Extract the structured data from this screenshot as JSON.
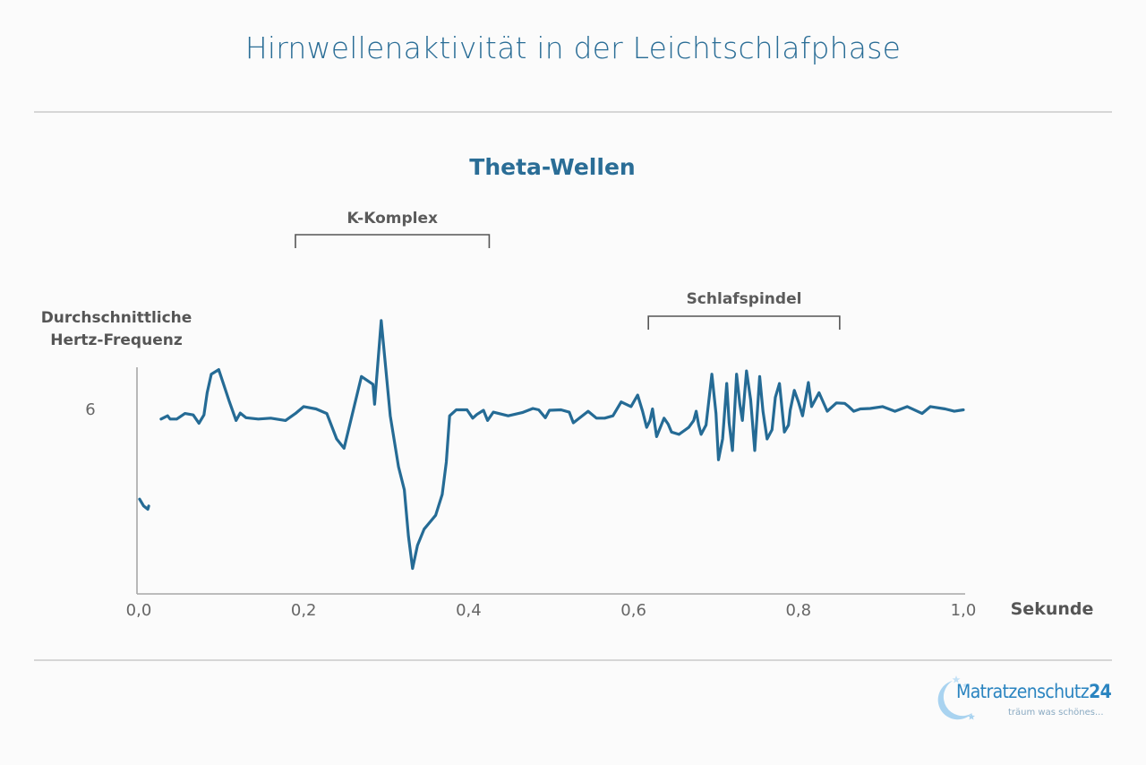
{
  "page_title": "Hirnwellenaktivität in der Leichtschlafphase",
  "logo": {
    "name_main": "Matratzenschutz",
    "name_num": "24",
    "tagline": "träum was schönes..."
  },
  "colors": {
    "accent": "#2a6d96",
    "line": "#256b95",
    "logo": "#2a84c0",
    "text_gray": "#5b5b5b"
  },
  "chart_data": {
    "type": "line",
    "title": "Theta-Wellen",
    "ylabel_lines": [
      "Durchschnittliche",
      "Hertz-Frequenz"
    ],
    "xlabel": "Sekunde",
    "xlim": [
      0.0,
      1.0
    ],
    "ylim": [
      2.15,
      7.05
    ],
    "x_ticks": [
      "0,0",
      "0,2",
      "0,4",
      "0,6",
      "0,8",
      "1,0"
    ],
    "y_ticks": [
      "6"
    ],
    "grid": false,
    "annotations": [
      {
        "label": "K-Komplex",
        "x_start": 0.19,
        "x_end": 0.425
      },
      {
        "label": "Schlafspindel",
        "x_start": 0.618,
        "x_end": 0.85
      }
    ],
    "series": [
      {
        "segments": [
          [
            [
              0.001,
              4.2
            ],
            [
              0.006,
              4.05
            ],
            [
              0.011,
              3.98
            ],
            [
              0.012,
              4.05
            ]
          ],
          [
            [
              0.027,
              5.93
            ],
            [
              0.035,
              6.0
            ],
            [
              0.038,
              5.93
            ],
            [
              0.046,
              5.93
            ],
            [
              0.056,
              6.05
            ],
            [
              0.066,
              6.02
            ],
            [
              0.073,
              5.84
            ],
            [
              0.079,
              6.02
            ],
            [
              0.083,
              6.5
            ],
            [
              0.088,
              6.9
            ],
            [
              0.097,
              7.0
            ],
            [
              0.11,
              6.3
            ],
            [
              0.118,
              5.9
            ],
            [
              0.123,
              6.06
            ],
            [
              0.13,
              5.96
            ],
            [
              0.145,
              5.93
            ],
            [
              0.16,
              5.95
            ],
            [
              0.178,
              5.9
            ],
            [
              0.19,
              6.05
            ],
            [
              0.2,
              6.2
            ],
            [
              0.215,
              6.15
            ],
            [
              0.228,
              6.05
            ],
            [
              0.24,
              5.5
            ],
            [
              0.249,
              5.3
            ],
            [
              0.27,
              6.85
            ],
            [
              0.284,
              6.68
            ],
            [
              0.286,
              6.25
            ],
            [
              0.294,
              8.06
            ],
            [
              0.305,
              6.0
            ],
            [
              0.315,
              4.9
            ],
            [
              0.322,
              4.4
            ],
            [
              0.327,
              3.4
            ],
            [
              0.332,
              2.7
            ],
            [
              0.338,
              3.2
            ],
            [
              0.346,
              3.55
            ],
            [
              0.353,
              3.7
            ],
            [
              0.36,
              3.85
            ],
            [
              0.368,
              4.3
            ],
            [
              0.373,
              5.0
            ],
            [
              0.377,
              6.0
            ],
            [
              0.385,
              6.13
            ],
            [
              0.398,
              6.13
            ],
            [
              0.405,
              5.95
            ],
            [
              0.41,
              6.03
            ],
            [
              0.418,
              6.12
            ],
            [
              0.423,
              5.9
            ],
            [
              0.43,
              6.08
            ],
            [
              0.448,
              6.0
            ],
            [
              0.465,
              6.07
            ],
            [
              0.478,
              6.16
            ],
            [
              0.485,
              6.13
            ],
            [
              0.493,
              5.96
            ],
            [
              0.498,
              6.12
            ],
            [
              0.512,
              6.13
            ],
            [
              0.522,
              6.08
            ],
            [
              0.527,
              5.85
            ],
            [
              0.545,
              6.1
            ],
            [
              0.555,
              5.95
            ],
            [
              0.565,
              5.95
            ],
            [
              0.575,
              6.0
            ],
            [
              0.585,
              6.3
            ],
            [
              0.597,
              6.2
            ],
            [
              0.605,
              6.45
            ],
            [
              0.611,
              6.1
            ],
            [
              0.616,
              5.75
            ],
            [
              0.62,
              5.9
            ],
            [
              0.623,
              6.15
            ],
            [
              0.628,
              5.55
            ],
            [
              0.637,
              5.95
            ],
            [
              0.642,
              5.82
            ],
            [
              0.646,
              5.65
            ],
            [
              0.655,
              5.6
            ],
            [
              0.667,
              5.75
            ],
            [
              0.673,
              5.9
            ],
            [
              0.676,
              6.1
            ],
            [
              0.679,
              5.8
            ],
            [
              0.682,
              5.6
            ],
            [
              0.688,
              5.8
            ],
            [
              0.695,
              6.9
            ],
            [
              0.7,
              6.05
            ],
            [
              0.703,
              5.05
            ],
            [
              0.708,
              5.5
            ],
            [
              0.713,
              6.7
            ],
            [
              0.716,
              5.85
            ],
            [
              0.72,
              5.25
            ],
            [
              0.725,
              6.9
            ],
            [
              0.729,
              6.25
            ],
            [
              0.732,
              5.9
            ],
            [
              0.737,
              6.97
            ],
            [
              0.742,
              6.35
            ],
            [
              0.747,
              5.25
            ],
            [
              0.753,
              6.85
            ],
            [
              0.757,
              6.1
            ],
            [
              0.762,
              5.5
            ],
            [
              0.768,
              5.7
            ],
            [
              0.772,
              6.4
            ],
            [
              0.777,
              6.7
            ],
            [
              0.783,
              5.65
            ],
            [
              0.788,
              5.8
            ],
            [
              0.79,
              6.12
            ],
            [
              0.795,
              6.55
            ],
            [
              0.8,
              6.3
            ],
            [
              0.805,
              6.0
            ],
            [
              0.812,
              6.72
            ],
            [
              0.816,
              6.2
            ],
            [
              0.825,
              6.5
            ],
            [
              0.835,
              6.1
            ],
            [
              0.846,
              6.28
            ],
            [
              0.856,
              6.27
            ],
            [
              0.861,
              6.2
            ],
            [
              0.867,
              6.1
            ],
            [
              0.875,
              6.15
            ],
            [
              0.887,
              6.16
            ],
            [
              0.902,
              6.2
            ],
            [
              0.917,
              6.1
            ],
            [
              0.932,
              6.2
            ],
            [
              0.95,
              6.05
            ],
            [
              0.96,
              6.2
            ],
            [
              0.978,
              6.15
            ],
            [
              0.989,
              6.1
            ],
            [
              1.0,
              6.13
            ]
          ]
        ]
      }
    ]
  }
}
